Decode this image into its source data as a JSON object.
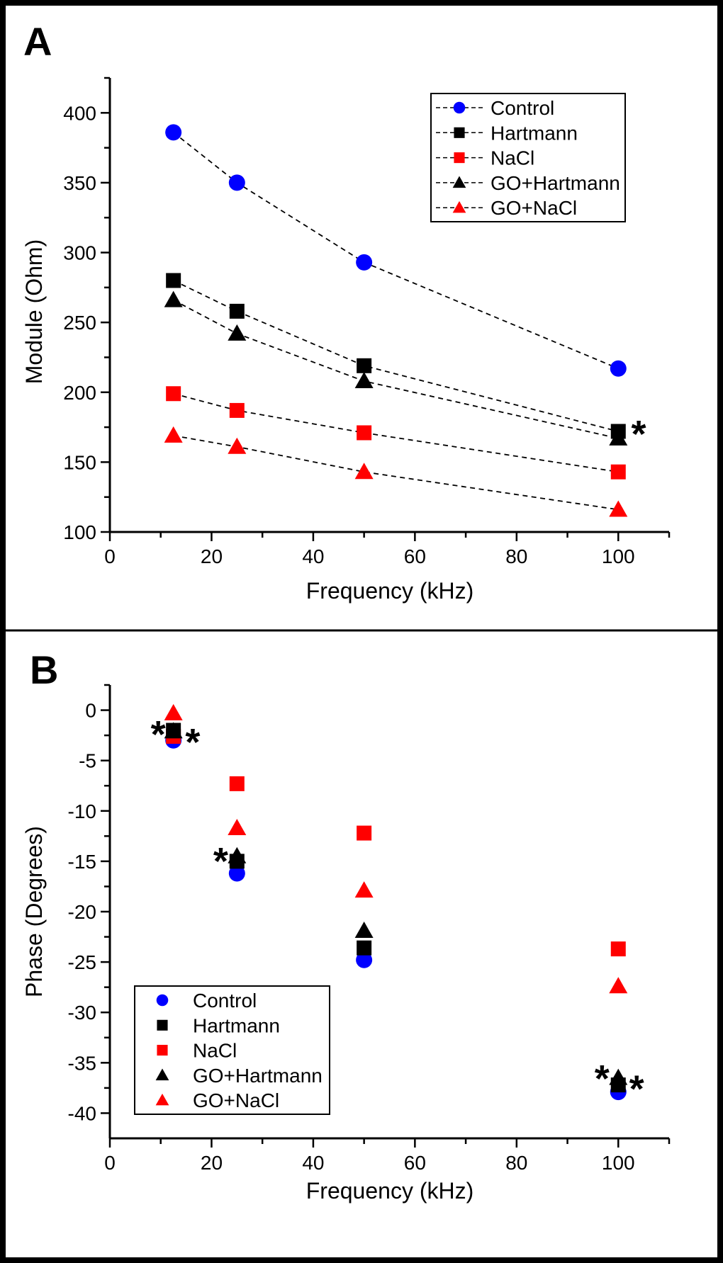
{
  "figure": {
    "background": "#ffffff",
    "frame_color": "#000000"
  },
  "colors": {
    "control": "#0000ff",
    "hartmann": "#000000",
    "nacl": "#ff0000",
    "go_hartmann": "#000000",
    "go_nacl": "#ff0000",
    "connector_line": "#000000"
  },
  "chart_data": [
    {
      "type": "scatter",
      "panel_label": "A",
      "xlabel": "Frequency (kHz)",
      "ylabel": "Module (Ohm)",
      "x": [
        12.5,
        25,
        50,
        100
      ],
      "series": [
        {
          "name": "Control",
          "marker": "circle",
          "color": "#0000ff",
          "line": "dashed",
          "values": [
            386,
            350,
            293,
            217
          ]
        },
        {
          "name": "Hartmann",
          "marker": "square",
          "color": "#000000",
          "line": "dashed",
          "values": [
            280,
            258,
            219,
            172
          ]
        },
        {
          "name": "NaCl",
          "marker": "square",
          "color": "#ff0000",
          "line": "dashed",
          "values": [
            199,
            187,
            171,
            143
          ]
        },
        {
          "name": "GO+Hartmann",
          "marker": "triangle",
          "color": "#000000",
          "line": "dashed",
          "values": [
            266,
            242,
            208,
            167
          ]
        },
        {
          "name": "GO+NaCl",
          "marker": "triangle",
          "color": "#ff0000",
          "line": "dashed",
          "values": [
            169,
            161,
            143,
            116
          ]
        }
      ],
      "xlim": [
        0,
        110
      ],
      "ylim": [
        100,
        425
      ],
      "xticks": [
        0,
        20,
        40,
        60,
        80,
        100
      ],
      "yticks": [
        100,
        150,
        200,
        250,
        300,
        350,
        400
      ],
      "grid": false,
      "legend_position": "top-right",
      "legend_shows_line": true,
      "annotations": [
        {
          "text": "*",
          "x": 104,
          "y": 171.5
        }
      ]
    },
    {
      "type": "scatter",
      "panel_label": "B",
      "xlabel": "Frequency (kHz)",
      "ylabel": "Phase (Degrees)",
      "x": [
        12.5,
        25,
        50,
        100
      ],
      "series": [
        {
          "name": "Control",
          "marker": "circle",
          "color": "#0000ff",
          "line": "none",
          "values": [
            -3.0,
            -16.2,
            -24.8,
            -37.9
          ]
        },
        {
          "name": "Hartmann",
          "marker": "square",
          "color": "#000000",
          "line": "none",
          "values": [
            -2.0,
            -15.0,
            -23.6,
            -37.2
          ]
        },
        {
          "name": "NaCl",
          "marker": "square",
          "color": "#ff0000",
          "line": "none",
          "values": [
            -2.6,
            -7.3,
            -12.2,
            -23.7
          ]
        },
        {
          "name": "GO+Hartmann",
          "marker": "triangle",
          "color": "#000000",
          "line": "none",
          "values": [
            -2.1,
            -14.5,
            -21.9,
            -36.5
          ]
        },
        {
          "name": "GO+NaCl",
          "marker": "triangle",
          "color": "#ff0000",
          "line": "none",
          "values": [
            -0.3,
            -11.7,
            -17.9,
            -27.4
          ]
        }
      ],
      "xlim": [
        0,
        110
      ],
      "ylim": [
        -42.5,
        2.5
      ],
      "xticks": [
        0,
        20,
        40,
        60,
        80,
        100
      ],
      "yticks": [
        0,
        -5,
        -10,
        -15,
        -20,
        -25,
        -30,
        -35,
        -40
      ],
      "grid": false,
      "legend_position": "bottom-left",
      "legend_shows_line": false,
      "annotations": [
        {
          "text": "*",
          "x": 9.5,
          "y": -2.2
        },
        {
          "text": "*",
          "x": 16.3,
          "y": -3.0
        },
        {
          "text": "*",
          "x": 21.8,
          "y": -14.8
        },
        {
          "text": "*",
          "x": 96.8,
          "y": -36.4
        },
        {
          "text": "*",
          "x": 103.6,
          "y": -37.4
        }
      ]
    }
  ]
}
